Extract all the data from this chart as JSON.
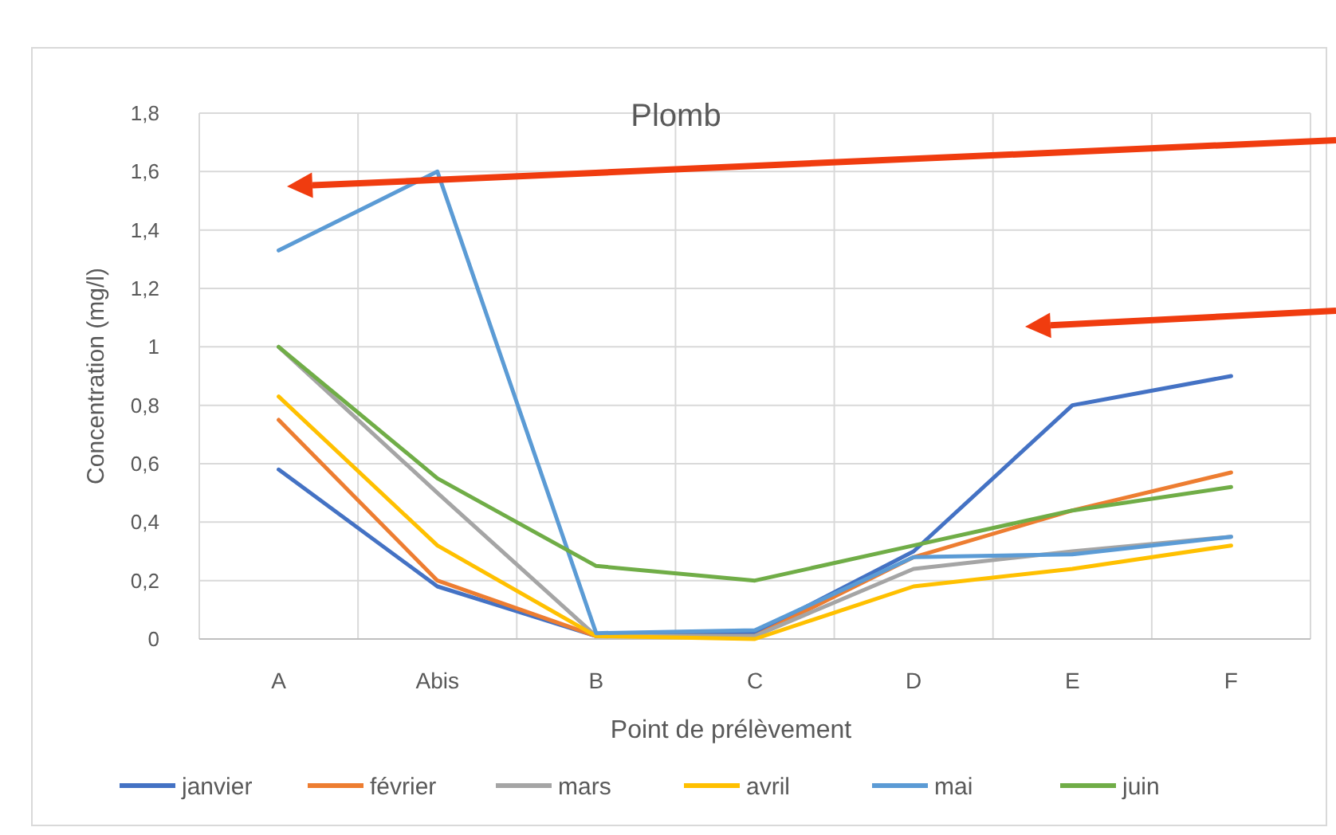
{
  "chart_data": {
    "type": "line",
    "title": "Plomb",
    "xlabel": "Point de prélèvement",
    "ylabel": "Concentration (mg/l)",
    "categories": [
      "A",
      "Abis",
      "B",
      "C",
      "D",
      "E",
      "F"
    ],
    "series": [
      {
        "name": "janvier",
        "color": "#4472c4",
        "values": [
          0.58,
          0.18,
          0.01,
          0.02,
          0.3,
          0.8,
          0.9
        ]
      },
      {
        "name": "février",
        "color": "#ed7d31",
        "values": [
          0.75,
          0.2,
          0.01,
          0.01,
          0.28,
          0.44,
          0.57
        ]
      },
      {
        "name": "mars",
        "color": "#a5a5a5",
        "values": [
          1.0,
          0.5,
          0.01,
          0.01,
          0.24,
          0.3,
          0.35
        ]
      },
      {
        "name": "avril",
        "color": "#ffc000",
        "values": [
          0.83,
          0.32,
          0.01,
          0.0,
          0.18,
          0.24,
          0.32
        ]
      },
      {
        "name": "mai",
        "color": "#5b9bd5",
        "values": [
          1.33,
          1.6,
          0.02,
          0.03,
          0.28,
          0.29,
          0.35
        ]
      },
      {
        "name": "juin",
        "color": "#70ad47",
        "values": [
          1.0,
          0.55,
          0.25,
          0.2,
          0.32,
          0.44,
          0.52
        ]
      }
    ],
    "ylim": [
      0,
      1.8
    ],
    "yticks": [
      0,
      {
        "value": 0.2,
        "label": "0,2"
      },
      {
        "value": 0.4,
        "label": "0,4"
      },
      {
        "value": 0.6,
        "label": "0,6"
      },
      {
        "value": 0.8,
        "label": "0,8"
      },
      1,
      {
        "value": 1.2,
        "label": "1,2"
      },
      {
        "value": 1.4,
        "label": "1,4"
      },
      {
        "value": 1.6,
        "label": "1,6"
      },
      {
        "value": 1.8,
        "label": "1,8"
      }
    ],
    "grid": true,
    "legend": "bottom",
    "marker": "none",
    "line_style": "solid"
  }
}
